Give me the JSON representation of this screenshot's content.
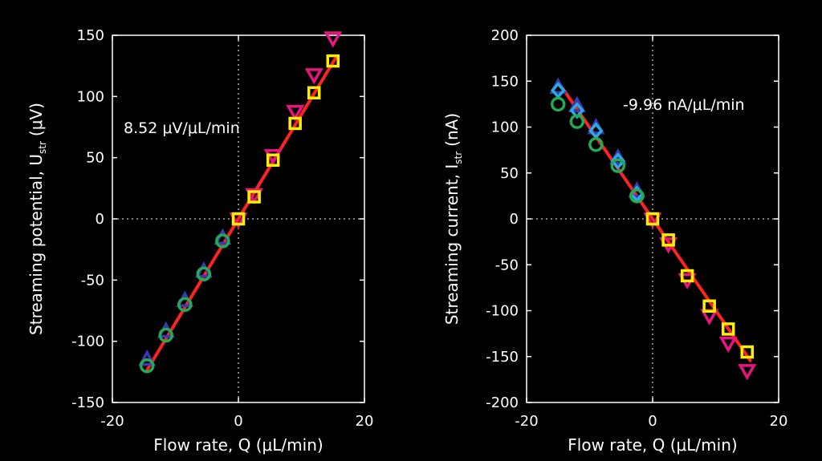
{
  "chart_data": [
    {
      "type": "scatter",
      "title": "",
      "xlabel": "Flow rate, Q (μL/min)",
      "ylabel": "Streaming potential, U",
      "ylabel_sub": "str",
      "ylabel_unit": "(μV)",
      "xlim": [
        -20,
        20
      ],
      "ylim": [
        -150,
        150
      ],
      "xticks": [
        -20,
        0,
        20
      ],
      "yticks": [
        -150,
        -100,
        -50,
        0,
        50,
        100,
        150
      ],
      "grid": "dotted zero lines",
      "annotation": "8.52 μV/μL/min",
      "fit": {
        "slope": 8.52,
        "intercept": 0,
        "x_range": [
          -14.5,
          15.5
        ],
        "color": "#ff2222"
      },
      "series": [
        {
          "marker": "triangle-up",
          "color": "#3a3ab0",
          "x": [
            -14.5,
            -11.5,
            -8.5,
            -5.5,
            -2.5
          ],
          "y": [
            -115,
            -92,
            -67,
            -43,
            -16
          ]
        },
        {
          "marker": "circle",
          "color": "#22aa55",
          "x": [
            -14.5,
            -11.5,
            -8.5,
            -5.5,
            -2.5
          ],
          "y": [
            -120,
            -95,
            -70,
            -45,
            -18
          ]
        },
        {
          "marker": "triangle-down",
          "color": "#e8147f",
          "x": [
            0,
            2.5,
            5.5,
            9,
            12,
            15
          ],
          "y": [
            0,
            20,
            52,
            88,
            118,
            148
          ]
        },
        {
          "marker": "square",
          "color": "#ffee00",
          "x": [
            0,
            2.5,
            5.5,
            9,
            12,
            15
          ],
          "y": [
            0,
            18,
            48,
            78,
            103,
            129
          ]
        }
      ]
    },
    {
      "type": "scatter",
      "title": "",
      "xlabel": "Flow rate, Q (μL/min)",
      "ylabel": "Streaming current, I",
      "ylabel_sub": "str",
      "ylabel_unit": "(nA)",
      "xlim": [
        -20,
        20
      ],
      "ylim": [
        -200,
        200
      ],
      "xticks": [
        -20,
        0,
        20
      ],
      "yticks": [
        -200,
        -150,
        -100,
        -50,
        0,
        50,
        100,
        150,
        200
      ],
      "grid": "dotted zero lines",
      "annotation": "-9.96 nA/μL/min",
      "fit": {
        "slope": -9.96,
        "intercept": 0,
        "x_range": [
          -15,
          15.5
        ],
        "color": "#ff2222"
      },
      "series": [
        {
          "marker": "triangle-up",
          "color": "#3a3ab0",
          "x": [
            -15,
            -12,
            -9,
            -5.5,
            -2.5
          ],
          "y": [
            143,
            123,
            99,
            66,
            30
          ]
        },
        {
          "marker": "diamond",
          "color": "#2aa8e8",
          "x": [
            -15,
            -12,
            -9,
            -5.5,
            -2.5
          ],
          "y": [
            140,
            118,
            96,
            63,
            27
          ]
        },
        {
          "marker": "circle",
          "color": "#22aa55",
          "x": [
            -15,
            -12,
            -9,
            -5.5,
            -2.5
          ],
          "y": [
            125,
            106,
            81,
            58,
            25
          ]
        },
        {
          "marker": "triangle-down",
          "color": "#e8147f",
          "x": [
            0,
            2.5,
            5.5,
            9,
            12,
            15
          ],
          "y": [
            0,
            -27,
            -66,
            -105,
            -135,
            -165
          ]
        },
        {
          "marker": "square",
          "color": "#ffee00",
          "x": [
            0,
            2.5,
            5.5,
            9,
            12,
            15
          ],
          "y": [
            0,
            -23,
            -62,
            -95,
            -120,
            -145
          ]
        }
      ]
    }
  ]
}
